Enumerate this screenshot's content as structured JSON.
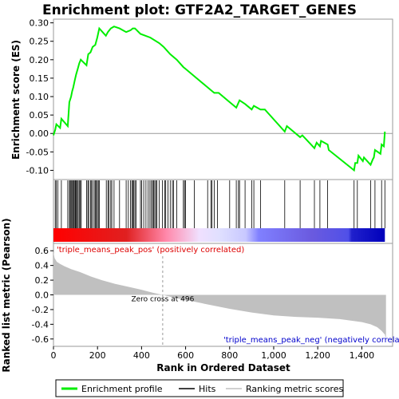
{
  "chart_data": [
    {
      "type": "line",
      "panel": "enrichment-profile",
      "title": "Enrichment plot: GTF2A2_TARGET_GENES",
      "ylabel": "Enrichment score (ES)",
      "xlim": [
        0,
        1540
      ],
      "ylim": [
        -0.125,
        0.31
      ],
      "yticks": [
        -0.1,
        -0.05,
        0.0,
        0.05,
        0.1,
        0.15,
        0.2,
        0.25,
        0.3
      ],
      "ytick_labels": [
        "-0.10",
        "-0.05",
        "0.00",
        "0.05",
        "0.10",
        "0.15",
        "0.20",
        "0.25",
        "0.30"
      ],
      "grid": false,
      "series": [
        {
          "name": "Enrichment profile",
          "color": "#00ee00",
          "x": [
            0,
            8,
            13,
            30,
            36,
            65,
            72,
            80,
            85,
            90,
            97,
            103,
            110,
            117,
            124,
            150,
            158,
            168,
            178,
            190,
            199,
            208,
            238,
            247,
            260,
            275,
            300,
            330,
            350,
            360,
            370,
            395,
            440,
            480,
            500,
            530,
            560,
            590,
            600,
            640,
            700,
            720,
            730,
            750,
            800,
            830,
            845,
            870,
            900,
            910,
            940,
            960,
            1050,
            1060,
            1120,
            1130,
            1185,
            1195,
            1210,
            1215,
            1245,
            1250,
            1365,
            1370,
            1380,
            1385,
            1405,
            1410,
            1440,
            1450,
            1455,
            1460,
            1485,
            1490,
            1500,
            1505
          ],
          "y": [
            -0.005,
            0.01,
            0.025,
            0.015,
            0.04,
            0.02,
            0.085,
            0.1,
            0.115,
            0.125,
            0.145,
            0.16,
            0.175,
            0.19,
            0.2,
            0.185,
            0.215,
            0.22,
            0.235,
            0.24,
            0.26,
            0.285,
            0.265,
            0.275,
            0.285,
            0.29,
            0.285,
            0.275,
            0.28,
            0.285,
            0.285,
            0.27,
            0.26,
            0.245,
            0.235,
            0.215,
            0.2,
            0.18,
            0.175,
            0.155,
            0.125,
            0.115,
            0.11,
            0.11,
            0.085,
            0.07,
            0.09,
            0.08,
            0.065,
            0.075,
            0.065,
            0.065,
            0.005,
            0.02,
            -0.01,
            -0.005,
            -0.04,
            -0.025,
            -0.035,
            -0.02,
            -0.03,
            -0.045,
            -0.1,
            -0.08,
            -0.08,
            -0.06,
            -0.075,
            -0.065,
            -0.085,
            -0.07,
            -0.065,
            -0.045,
            -0.055,
            -0.03,
            -0.035,
            0.005
          ]
        }
      ]
    },
    {
      "type": "scatter",
      "panel": "hits",
      "series": [
        {
          "name": "Hits",
          "x": [
            8,
            13,
            20,
            36,
            65,
            72,
            76,
            80,
            84,
            88,
            92,
            97,
            100,
            103,
            108,
            112,
            117,
            122,
            126,
            150,
            156,
            160,
            168,
            173,
            178,
            185,
            190,
            195,
            199,
            204,
            208,
            240,
            247,
            252,
            260,
            265,
            275,
            300,
            330,
            340,
            350,
            356,
            360,
            365,
            370,
            375,
            395,
            400,
            410,
            420,
            430,
            438,
            445,
            450,
            455,
            460,
            465,
            470,
            480,
            495,
            505,
            510,
            520,
            530,
            540,
            545,
            560,
            590,
            595,
            600,
            640,
            700,
            715,
            720,
            730,
            745,
            800,
            830,
            840,
            845,
            870,
            900,
            910,
            940,
            1050,
            1120,
            1185,
            1210,
            1245,
            1365,
            1380,
            1440,
            1460,
            1490,
            1505
          ]
        }
      ]
    },
    {
      "type": "area",
      "panel": "ranked-list-metric",
      "xlabel": "Rank in Ordered Dataset",
      "ylabel": "Ranked list metric (Pearson)",
      "xlim": [
        0,
        1540
      ],
      "ylim": [
        -0.7,
        0.7
      ],
      "xticks": [
        0,
        200,
        400,
        600,
        800,
        1000,
        1200,
        1400
      ],
      "xtick_labels": [
        "0",
        "200",
        "400",
        "600",
        "800",
        "1,000",
        "1,200",
        "1,400"
      ],
      "yticks": [
        -0.6,
        -0.4,
        -0.2,
        0.0,
        0.2,
        0.4,
        0.6
      ],
      "ytick_labels": [
        "-0.6",
        "-0.4",
        "-0.2",
        "0.0",
        "0.2",
        "0.4",
        "0.6"
      ],
      "series": [
        {
          "name": "Ranking metric scores",
          "color": "#c0c0c0",
          "x": [
            0,
            5,
            15,
            30,
            50,
            80,
            120,
            170,
            220,
            280,
            340,
            400,
            450,
            496,
            550,
            620,
            700,
            800,
            900,
            1000,
            1100,
            1200,
            1300,
            1350,
            1400,
            1440,
            1470,
            1490,
            1505,
            1510
          ],
          "y": [
            0.58,
            0.5,
            0.45,
            0.42,
            0.39,
            0.35,
            0.31,
            0.25,
            0.2,
            0.15,
            0.11,
            0.07,
            0.03,
            0.0,
            -0.04,
            -0.08,
            -0.13,
            -0.19,
            -0.24,
            -0.28,
            -0.3,
            -0.31,
            -0.33,
            -0.35,
            -0.37,
            -0.4,
            -0.44,
            -0.49,
            -0.54,
            -0.6
          ]
        }
      ],
      "annotations": {
        "positive": "'triple_means_peak_pos' (positively correlated)",
        "negative": "'triple_means_peak_neg' (negatively correlated)",
        "zero_cross": "Zero cross at 496"
      },
      "zero_cross": 496
    }
  ],
  "heat_bar": {
    "stops": [
      {
        "pos": 0.0,
        "color": "#ff0000"
      },
      {
        "pos": 0.22,
        "color": "#e02020"
      },
      {
        "pos": 0.34,
        "color": "#ff88aa"
      },
      {
        "pos": 0.44,
        "color": "#f0e0ff"
      },
      {
        "pos": 0.5,
        "color": "#e0e0ff"
      },
      {
        "pos": 0.58,
        "color": "#c8c8ff"
      },
      {
        "pos": 0.62,
        "color": "#8080ff"
      },
      {
        "pos": 0.78,
        "color": "#6a5adf"
      },
      {
        "pos": 0.89,
        "color": "#5050e8"
      },
      {
        "pos": 0.9,
        "color": "#2020cc"
      },
      {
        "pos": 1.0,
        "color": "#0000bb"
      }
    ]
  },
  "legend": {
    "items": [
      {
        "label": "Enrichment profile",
        "color": "#00ee00",
        "kind": "thick-line"
      },
      {
        "label": "Hits",
        "color": "#000000",
        "kind": "line"
      },
      {
        "label": "Ranking metric scores",
        "color": "#c0c0c0",
        "kind": "thin-line"
      }
    ]
  }
}
